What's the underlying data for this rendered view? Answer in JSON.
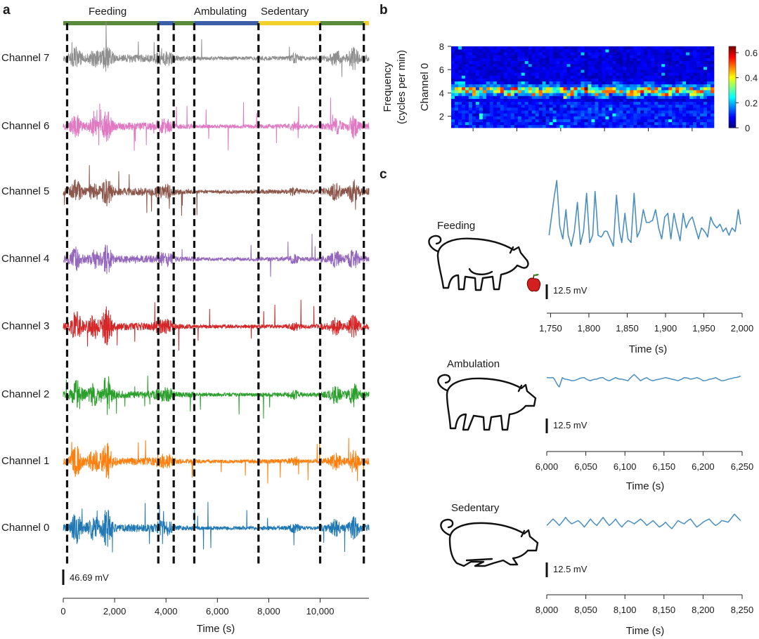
{
  "panel_a": {
    "letter": "a",
    "state_labels": [
      {
        "label": "Feeding",
        "color": "#5a8a3c"
      },
      {
        "label": "Ambulating",
        "color": "#3b5fa6"
      },
      {
        "label": "Sedentary",
        "color": "#f2d12a"
      }
    ],
    "state_bar": [
      {
        "state": "Feeding",
        "from": 0,
        "to": 3700
      },
      {
        "state": "Ambulating",
        "from": 3700,
        "to": 4300
      },
      {
        "state": "Feeding",
        "from": 4300,
        "to": 5100
      },
      {
        "state": "Ambulating",
        "from": 5100,
        "to": 7600
      },
      {
        "state": "Sedentary",
        "from": 7600,
        "to": 10000
      },
      {
        "state": "Feeding",
        "from": 10000,
        "to": 11700
      },
      {
        "state": "Sedentary",
        "from": 11700,
        "to": 11900
      }
    ],
    "channels": [
      {
        "label": "Channel 7",
        "color": "#8f8f8f"
      },
      {
        "label": "Channel 6",
        "color": "#e078c2"
      },
      {
        "label": "Channel 5",
        "color": "#8c564b"
      },
      {
        "label": "Channel 4",
        "color": "#9467bd"
      },
      {
        "label": "Channel 3",
        "color": "#d62728"
      },
      {
        "label": "Channel 2",
        "color": "#2ca02c"
      },
      {
        "label": "Channel 1",
        "color": "#ff7f0e"
      },
      {
        "label": "Channel 0",
        "color": "#1f77b4"
      }
    ],
    "transitions_s": [
      150,
      3700,
      4300,
      5100,
      7600,
      10000,
      11700
    ],
    "scale_bar": "46.69 mV",
    "x_ticks": [
      "0",
      "2,000",
      "4,000",
      "6,000",
      "8,000",
      "10,000"
    ],
    "x_tick_values": [
      0,
      2000,
      4000,
      6000,
      8000,
      10000
    ],
    "xlim": [
      0,
      11900
    ],
    "xlabel": "Time (s)"
  },
  "panel_b": {
    "letter": "b",
    "ylabel_1": "Frequency",
    "ylabel_2": "(cycles per min)",
    "channel_label": "Channel 0",
    "y_ticks": [
      "2",
      "4",
      "6",
      "8"
    ],
    "y_tick_values": [
      2,
      4,
      6,
      8
    ],
    "ylim": [
      1,
      8
    ],
    "colorbar_ticks": [
      "0",
      "0.2",
      "0.4",
      "0.6"
    ],
    "colorbar_tick_values": [
      0,
      0.2,
      0.4,
      0.6
    ],
    "colorbar_range": [
      0,
      0.65
    ],
    "dominant_frequency_cpm": 4.2
  },
  "panel_c": {
    "letter": "c",
    "rows": [
      {
        "behavior": "Feeding",
        "scale_bar": "12.5 mV",
        "x_ticks": [
          "1,750",
          "1,800",
          "1,850",
          "1,900",
          "1,950",
          "2,000"
        ],
        "x_tick_values": [
          1750,
          1800,
          1850,
          1900,
          1950,
          2000
        ],
        "xlim": [
          1745,
          2000
        ],
        "xlabel": "Time (s)"
      },
      {
        "behavior": "Ambulation",
        "scale_bar": "12.5 mV",
        "x_ticks": [
          "6,000",
          "6,050",
          "6,100",
          "6,150",
          "6,200",
          "6,250"
        ],
        "x_tick_values": [
          6000,
          6050,
          6100,
          6150,
          6200,
          6250
        ],
        "xlim": [
          6000,
          6250
        ],
        "xlabel": "Time (s)"
      },
      {
        "behavior": "Sedentary",
        "scale_bar": "12.5 mV",
        "x_ticks": [
          "8,000",
          "8,050",
          "8,100",
          "8,150",
          "8,200",
          "8,250"
        ],
        "x_tick_values": [
          8000,
          8050,
          8100,
          8150,
          8200,
          8250
        ],
        "xlim": [
          8000,
          8250
        ],
        "xlabel": "Time (s)"
      }
    ],
    "trace_color": "#4a8fbf"
  },
  "chart_data": [
    {
      "type": "line",
      "panel": "a",
      "xlabel": "Time (s)",
      "xlim": [
        0,
        11900
      ],
      "series": [
        {
          "name": "Channel 7"
        },
        {
          "name": "Channel 6"
        },
        {
          "name": "Channel 5"
        },
        {
          "name": "Channel 4"
        },
        {
          "name": "Channel 3"
        },
        {
          "name": "Channel 2"
        },
        {
          "name": "Channel 1"
        },
        {
          "name": "Channel 0"
        }
      ],
      "annotations": [
        "Feeding",
        "Ambulating",
        "Sedentary",
        "46.69 mV"
      ]
    },
    {
      "type": "heatmap",
      "panel": "b",
      "ylabel": "Frequency (cycles per min)",
      "ylim": [
        1,
        8
      ],
      "colorbar_range": [
        0,
        0.65
      ],
      "dominant_band_cpm": 4.2
    },
    {
      "type": "line",
      "panel": "c-feeding",
      "xlabel": "Time (s)",
      "xlim": [
        1745,
        2000
      ],
      "x": [
        1748,
        1755,
        1758,
        1762,
        1766,
        1770,
        1773,
        1777,
        1781,
        1785,
        1789,
        1793,
        1797,
        1801,
        1805,
        1808,
        1812,
        1816,
        1820,
        1824,
        1828,
        1832,
        1836,
        1840,
        1843,
        1847,
        1851,
        1855,
        1859,
        1863,
        1867,
        1871,
        1875,
        1879,
        1883,
        1887,
        1891,
        1895,
        1899,
        1903,
        1907,
        1911,
        1915,
        1919,
        1923,
        1927,
        1931,
        1935,
        1939,
        1943,
        1947,
        1951,
        1955,
        1959,
        1963,
        1967,
        1971,
        1975,
        1979,
        1983,
        1987,
        1991,
        1995,
        1998
      ],
      "y": [
        0,
        22,
        30,
        5,
        -2,
        14,
        0,
        -6,
        2,
        18,
        -5,
        2,
        23,
        -4,
        0,
        24,
        0,
        -1,
        2,
        2,
        -2,
        -6,
        22,
        2,
        -4,
        12,
        -2,
        -4,
        23,
        -1,
        3,
        14,
        7,
        7,
        8,
        14,
        4,
        -2,
        10,
        12,
        -2,
        12,
        4,
        -3,
        12,
        4,
        8,
        10,
        4,
        -2,
        4,
        2,
        -1,
        10,
        6,
        4,
        6,
        2,
        4,
        0,
        4,
        2,
        14,
        6
      ]
    },
    {
      "type": "line",
      "panel": "c-ambulation",
      "xlabel": "Time (s)",
      "xlim": [
        6000,
        6250
      ],
      "x": [
        6000,
        6008,
        6012,
        6016,
        6020,
        6024,
        6032,
        6040,
        6048,
        6056,
        6064,
        6072,
        6080,
        6088,
        6096,
        6104,
        6112,
        6120,
        6128,
        6136,
        6144,
        6152,
        6160,
        6168,
        6176,
        6184,
        6192,
        6200,
        6208,
        6216,
        6224,
        6232,
        6240,
        6248
      ],
      "y": [
        1,
        1,
        -2,
        -5,
        1,
        0,
        -1,
        0,
        1,
        -1,
        0,
        1,
        -1,
        1,
        0,
        -1,
        3,
        -1,
        1,
        -1,
        0,
        1,
        0,
        -1,
        1,
        0,
        1,
        -1,
        0,
        1,
        -1,
        0,
        1,
        2
      ]
    },
    {
      "type": "line",
      "panel": "c-sedentary",
      "xlabel": "Time (s)",
      "xlim": [
        8000,
        8250
      ],
      "x": [
        8000,
        8008,
        8016,
        8024,
        8032,
        8040,
        8048,
        8056,
        8064,
        8072,
        8080,
        8088,
        8096,
        8104,
        8112,
        8120,
        8128,
        8136,
        8144,
        8152,
        8160,
        8168,
        8176,
        8184,
        8192,
        8200,
        8208,
        8216,
        8224,
        8232,
        8240,
        8248
      ],
      "y": [
        -1,
        3,
        -1,
        4,
        0,
        2,
        -2,
        3,
        -1,
        4,
        -1,
        3,
        -2,
        2,
        0,
        3,
        -1,
        2,
        -2,
        1,
        -3,
        2,
        0,
        3,
        -2,
        1,
        3,
        -1,
        2,
        1,
        6,
        2
      ]
    }
  ]
}
